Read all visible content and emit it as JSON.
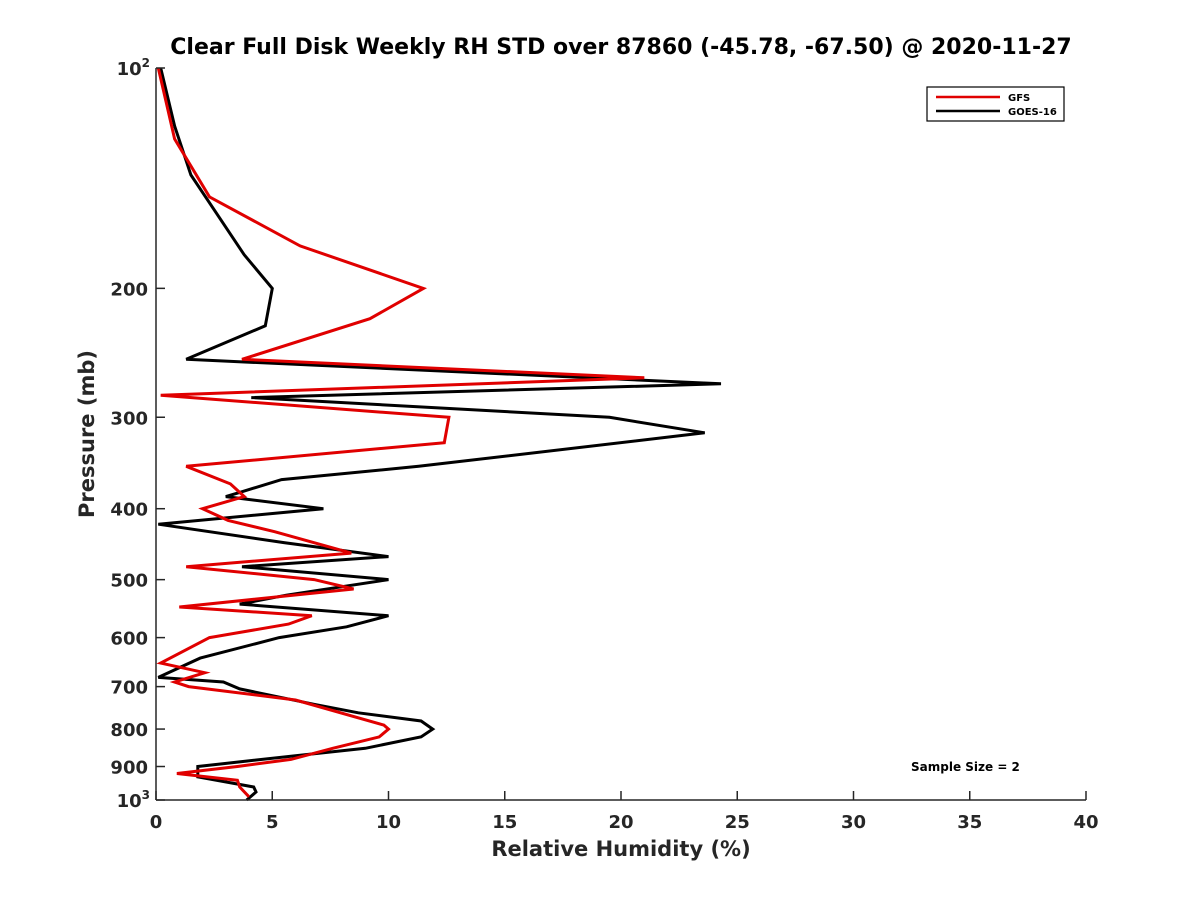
{
  "chart_data": {
    "type": "line",
    "title": "Clear Full Disk Weekly RH STD over 87860 (-45.78, -67.50) @ 2020-11-27",
    "xlabel": "Relative Humidity (%)",
    "ylabel": "Pressure (mb)",
    "xlim": [
      0,
      40
    ],
    "ylim": [
      100,
      1000
    ],
    "y_scale": "log",
    "y_reversed": true,
    "grid": false,
    "legend_position": "top-right",
    "x_ticks": [
      "0",
      "5",
      "10",
      "15",
      "20",
      "25",
      "30",
      "35",
      "40"
    ],
    "x_tick_values": [
      0,
      5,
      10,
      15,
      20,
      25,
      30,
      35,
      40
    ],
    "y_ticks": [
      {
        "value": 100,
        "base": "10",
        "sup": "2"
      },
      {
        "value": 200,
        "base": "200",
        "sup": ""
      },
      {
        "value": 300,
        "base": "300",
        "sup": ""
      },
      {
        "value": 400,
        "base": "400",
        "sup": ""
      },
      {
        "value": 500,
        "base": "500",
        "sup": ""
      },
      {
        "value": 600,
        "base": "600",
        "sup": ""
      },
      {
        "value": 700,
        "base": "700",
        "sup": ""
      },
      {
        "value": 800,
        "base": "800",
        "sup": ""
      },
      {
        "value": 900,
        "base": "900",
        "sup": ""
      },
      {
        "value": 1000,
        "base": "10",
        "sup": "3"
      }
    ],
    "annotation": "Sample Size = 2",
    "series": [
      {
        "name": "GFS",
        "color": "#e00000",
        "points": [
          [
            0.1,
            100
          ],
          [
            0.8,
            125
          ],
          [
            2.3,
            150
          ],
          [
            6.2,
            175
          ],
          [
            11.5,
            200
          ],
          [
            9.2,
            220
          ],
          [
            3.7,
            250
          ],
          [
            21.0,
            265
          ],
          [
            0.2,
            280
          ],
          [
            12.6,
            300
          ],
          [
            12.4,
            325
          ],
          [
            1.3,
            350
          ],
          [
            3.2,
            370
          ],
          [
            3.8,
            385
          ],
          [
            2.0,
            400
          ],
          [
            3.1,
            415
          ],
          [
            5.1,
            430
          ],
          [
            8.4,
            460
          ],
          [
            1.3,
            480
          ],
          [
            6.8,
            500
          ],
          [
            8.5,
            515
          ],
          [
            1.0,
            545
          ],
          [
            6.7,
            560
          ],
          [
            5.7,
            575
          ],
          [
            2.3,
            600
          ],
          [
            0.2,
            650
          ],
          [
            2.1,
            670
          ],
          [
            0.8,
            690
          ],
          [
            1.4,
            700
          ],
          [
            6.0,
            730
          ],
          [
            9.8,
            790
          ],
          [
            10.0,
            800
          ],
          [
            9.6,
            820
          ],
          [
            7.6,
            850
          ],
          [
            5.8,
            880
          ],
          [
            3.5,
            900
          ],
          [
            0.9,
            920
          ],
          [
            3.5,
            940
          ],
          [
            3.6,
            960
          ],
          [
            4.0,
            990
          ]
        ]
      },
      {
        "name": "GOES-16",
        "color": "#000000",
        "points": [
          [
            0.2,
            100
          ],
          [
            0.8,
            120
          ],
          [
            1.5,
            140
          ],
          [
            3.8,
            180
          ],
          [
            5.0,
            200
          ],
          [
            4.7,
            225
          ],
          [
            1.3,
            250
          ],
          [
            24.3,
            270
          ],
          [
            4.1,
            282
          ],
          [
            19.5,
            300
          ],
          [
            23.6,
            315
          ],
          [
            11.3,
            350
          ],
          [
            5.4,
            365
          ],
          [
            3.6,
            380
          ],
          [
            3.0,
            385
          ],
          [
            7.2,
            400
          ],
          [
            0.1,
            420
          ],
          [
            5.5,
            445
          ],
          [
            10.0,
            465
          ],
          [
            3.7,
            480
          ],
          [
            10.0,
            500
          ],
          [
            5.6,
            525
          ],
          [
            3.6,
            540
          ],
          [
            10.0,
            560
          ],
          [
            8.2,
            580
          ],
          [
            5.3,
            600
          ],
          [
            1.9,
            640
          ],
          [
            0.1,
            680
          ],
          [
            2.9,
            690
          ],
          [
            3.6,
            705
          ],
          [
            6.8,
            740
          ],
          [
            8.7,
            760
          ],
          [
            11.4,
            780
          ],
          [
            11.9,
            800
          ],
          [
            11.4,
            820
          ],
          [
            9.0,
            850
          ],
          [
            6.0,
            870
          ],
          [
            1.8,
            900
          ],
          [
            1.8,
            930
          ],
          [
            4.2,
            960
          ],
          [
            4.3,
            975
          ],
          [
            3.9,
            1000
          ]
        ]
      }
    ]
  }
}
